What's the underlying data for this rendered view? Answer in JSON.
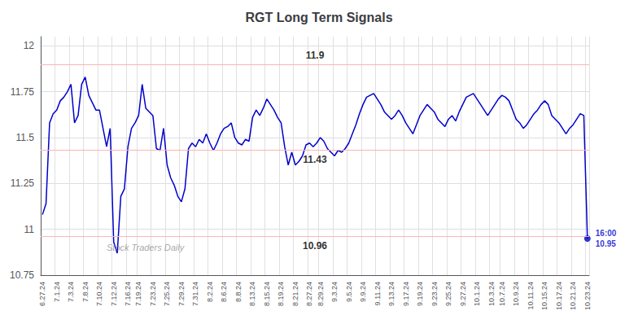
{
  "chart_data": {
    "type": "line",
    "title": "RGT Long Term Signals",
    "watermark": "Stock Traders Daily",
    "categories": [
      "6.27.24",
      null,
      null,
      null,
      "7.1.24",
      null,
      null,
      null,
      "7.3.24",
      null,
      null,
      null,
      "7.8.24",
      null,
      null,
      null,
      "7.10.24",
      null,
      null,
      null,
      "7.12.24",
      null,
      null,
      null,
      "7.16.24",
      null,
      null,
      "7.19.24",
      null,
      null,
      null,
      "7.23.24",
      null,
      null,
      null,
      "7.25.24",
      null,
      null,
      null,
      "7.29.24",
      null,
      null,
      null,
      "7.31.24",
      null,
      null,
      null,
      "8.2.24",
      null,
      null,
      null,
      "8.6.24",
      null,
      null,
      null,
      "8.8.24",
      null,
      null,
      null,
      "8.13.24",
      null,
      null,
      null,
      "8.15.24",
      null,
      null,
      null,
      "8.19.24",
      null,
      null,
      null,
      "8.21.24",
      null,
      null,
      null,
      "8.27.24",
      null,
      null,
      "8.29.24",
      null,
      null,
      null,
      "9.3.24",
      null,
      null,
      null,
      "9.5.24",
      null,
      null,
      null,
      "9.9.24",
      null,
      null,
      null,
      "9.11.24",
      null,
      null,
      null,
      "9.13.24",
      null,
      null,
      null,
      "9.17.24",
      null,
      null,
      null,
      "9.19.24",
      null,
      null,
      null,
      "9.23.24",
      null,
      null,
      null,
      "9.25.24",
      null,
      null,
      null,
      "9.27.24",
      null,
      null,
      null,
      "10.1.24",
      null,
      null,
      null,
      "10.3.24",
      null,
      null,
      "10.7.24",
      null,
      null,
      null,
      "10.9.24",
      null,
      null,
      null,
      "10.11.24",
      null,
      null,
      null,
      "10.15.24",
      null,
      null,
      null,
      "10.17.24",
      null,
      null,
      null,
      "10.21.24",
      null,
      null,
      null,
      "10.23.24"
    ],
    "values": [
      11.08,
      11.14,
      11.58,
      11.63,
      11.65,
      11.7,
      11.72,
      11.75,
      11.79,
      11.58,
      11.62,
      11.79,
      11.83,
      11.73,
      11.69,
      11.65,
      11.65,
      11.55,
      11.45,
      11.55,
      10.93,
      10.87,
      11.18,
      11.22,
      11.45,
      11.55,
      11.58,
      11.62,
      11.79,
      11.66,
      11.64,
      11.62,
      11.44,
      11.43,
      11.55,
      11.35,
      11.28,
      11.24,
      11.18,
      11.15,
      11.22,
      11.44,
      11.47,
      11.45,
      11.49,
      11.47,
      11.52,
      11.47,
      11.43,
      11.47,
      11.52,
      11.55,
      11.56,
      11.58,
      11.5,
      11.47,
      11.46,
      11.49,
      11.48,
      11.61,
      11.65,
      11.62,
      11.66,
      11.71,
      11.68,
      11.65,
      11.61,
      11.58,
      11.45,
      11.35,
      11.42,
      11.35,
      11.37,
      11.4,
      11.46,
      11.47,
      11.45,
      11.47,
      11.5,
      11.48,
      11.44,
      11.42,
      11.4,
      11.43,
      11.42,
      11.44,
      11.47,
      11.52,
      11.57,
      11.63,
      11.68,
      11.72,
      11.73,
      11.74,
      11.71,
      11.68,
      11.64,
      11.62,
      11.6,
      11.62,
      11.65,
      11.62,
      11.58,
      11.55,
      11.52,
      11.57,
      11.62,
      11.65,
      11.68,
      11.66,
      11.64,
      11.6,
      11.58,
      11.56,
      11.6,
      11.62,
      11.59,
      11.64,
      11.68,
      11.72,
      11.73,
      11.74,
      11.71,
      11.68,
      11.65,
      11.62,
      11.65,
      11.68,
      11.71,
      11.73,
      11.72,
      11.7,
      11.65,
      11.6,
      11.58,
      11.55,
      11.57,
      11.6,
      11.63,
      11.65,
      11.68,
      11.7,
      11.68,
      11.62,
      11.6,
      11.58,
      11.55,
      11.52,
      11.55,
      11.57,
      11.6,
      11.63,
      11.62,
      10.95
    ],
    "color": "#0000cc",
    "ylim": [
      10.75,
      12.05
    ],
    "yticks": [
      10.75,
      11,
      11.25,
      11.5,
      11.75,
      12
    ],
    "grid": true,
    "hlines": {
      "values": [
        10.96,
        11.43,
        11.9
      ],
      "labels": [
        "10.96",
        "11.43",
        "11.9"
      ],
      "color": "#ffb3b3"
    },
    "end_label": [
      "16:00",
      "10.95"
    ]
  }
}
